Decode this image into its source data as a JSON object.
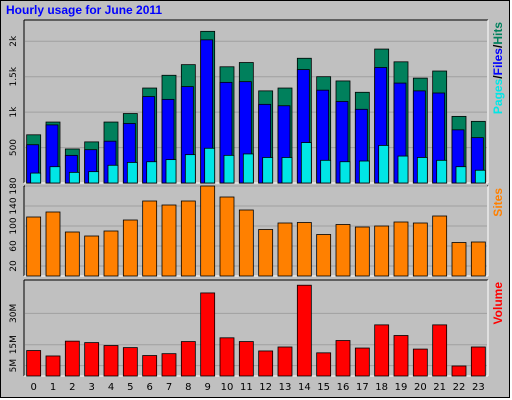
{
  "title": "Hourly usage for June 2011",
  "colors": {
    "hits": "#00805c",
    "files": "#0000ff",
    "pages": "#00e6e6",
    "sites": "#ff8000",
    "volume": "#ff0000",
    "grid": "#a0a0a0",
    "panel": "#c0c0c0"
  },
  "chart_data": [
    {
      "type": "bar",
      "categories": [
        "0",
        "1",
        "2",
        "3",
        "4",
        "5",
        "6",
        "7",
        "8",
        "9",
        "10",
        "11",
        "12",
        "13",
        "14",
        "15",
        "16",
        "17",
        "18",
        "19",
        "20",
        "21",
        "22",
        "23"
      ],
      "series": [
        {
          "name": "Hits",
          "values": [
            680,
            860,
            480,
            580,
            860,
            980,
            1340,
            1520,
            1670,
            2140,
            1640,
            1700,
            1300,
            1340,
            1760,
            1500,
            1440,
            1280,
            1890,
            1710,
            1480,
            1580,
            940,
            870
          ]
        },
        {
          "name": "Files",
          "values": [
            540,
            820,
            390,
            470,
            590,
            840,
            1220,
            1180,
            1360,
            2020,
            1420,
            1430,
            1110,
            1090,
            1600,
            1310,
            1150,
            1040,
            1630,
            1410,
            1300,
            1270,
            750,
            640
          ]
        },
        {
          "name": "Pages",
          "values": [
            140,
            230,
            150,
            160,
            250,
            290,
            300,
            330,
            400,
            490,
            390,
            410,
            360,
            360,
            570,
            320,
            300,
            310,
            530,
            380,
            360,
            320,
            230,
            180
          ]
        }
      ],
      "ylim": [
        0,
        2300
      ],
      "ytick_labels": [
        "500",
        "1k",
        "1.5k",
        "2k"
      ],
      "ytick_values": [
        500,
        1000,
        1500,
        2000
      ],
      "legend": [
        "Pages",
        "/",
        "Files",
        "/",
        "Hits"
      ]
    },
    {
      "type": "bar",
      "categories": [
        "0",
        "1",
        "2",
        "3",
        "4",
        "5",
        "6",
        "7",
        "8",
        "9",
        "10",
        "11",
        "12",
        "13",
        "14",
        "15",
        "16",
        "17",
        "18",
        "19",
        "20",
        "21",
        "22",
        "23"
      ],
      "series": [
        {
          "name": "Sites",
          "values": [
            118,
            128,
            88,
            80,
            90,
            112,
            150,
            142,
            150,
            180,
            158,
            132,
            93,
            106,
            107,
            83,
            103,
            98,
            100,
            108,
            106,
            120,
            67,
            68
          ]
        }
      ],
      "ylim": [
        0,
        180
      ],
      "ytick_labels": [
        "20",
        "60",
        "100",
        "140",
        "180"
      ],
      "ytick_values": [
        20,
        60,
        100,
        140,
        180
      ],
      "legend": [
        "Sites"
      ]
    },
    {
      "type": "bar",
      "categories": [
        "0",
        "1",
        "2",
        "3",
        "4",
        "5",
        "6",
        "7",
        "8",
        "9",
        "10",
        "11",
        "12",
        "13",
        "14",
        "15",
        "16",
        "17",
        "18",
        "19",
        "20",
        "21",
        "22",
        "23"
      ],
      "series": [
        {
          "name": "Volume",
          "values": [
            12.2,
            9.6,
            16.7,
            16.0,
            14.6,
            13.6,
            9.8,
            10.7,
            16.5,
            39.8,
            18.3,
            16.5,
            12.0,
            13.9,
            43.5,
            11.1,
            17.0,
            13.4,
            24.5,
            19.4,
            12.9,
            24.5,
            4.8,
            13.9
          ]
        }
      ],
      "ylim": [
        0,
        46
      ],
      "ytick_labels": [
        "5M",
        "15M",
        "30M"
      ],
      "ytick_values": [
        5,
        15,
        30
      ],
      "legend": [
        "Volume"
      ]
    }
  ]
}
